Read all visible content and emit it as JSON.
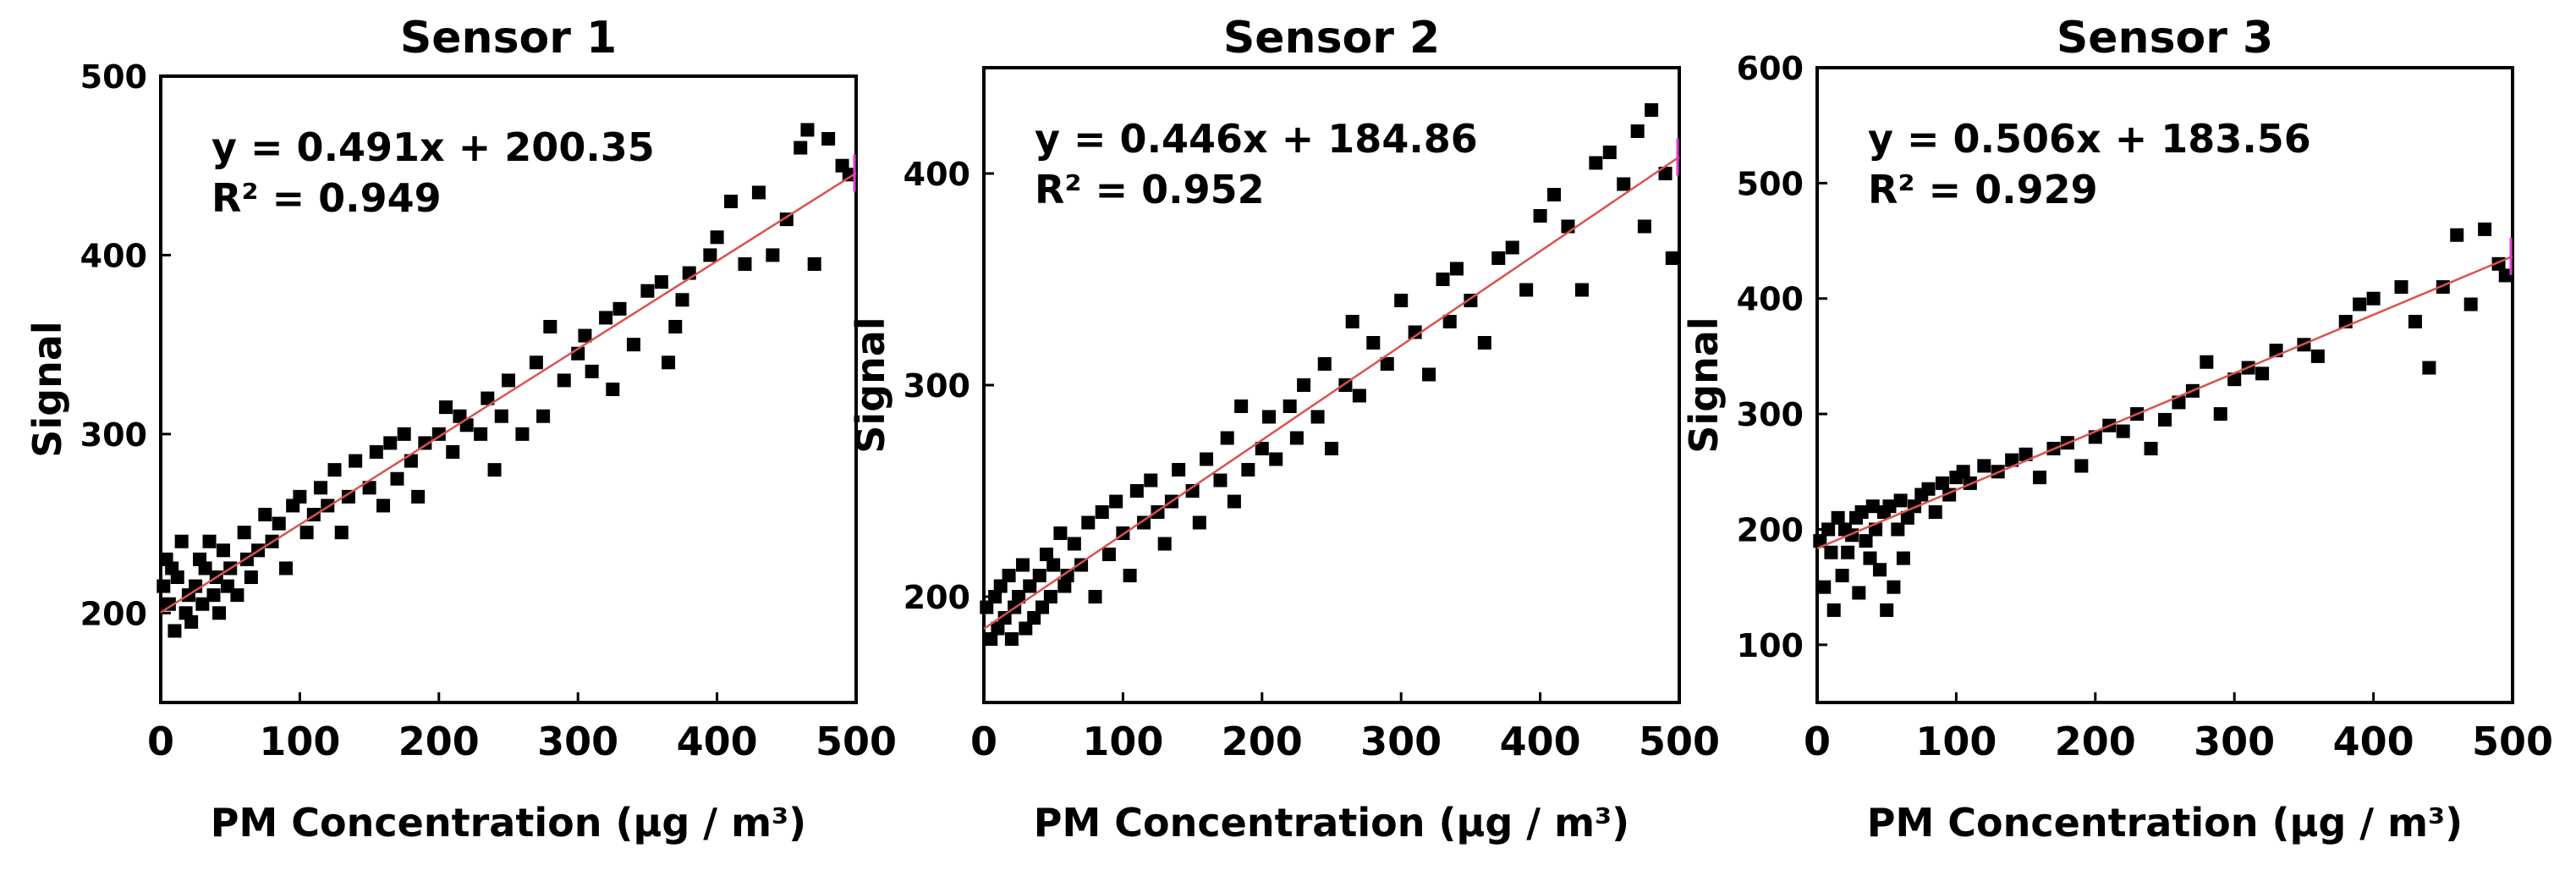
{
  "chart_data": [
    {
      "type": "scatter",
      "title": "Sensor 1",
      "xlabel": "PM Concentration (μg / m³)",
      "ylabel": "Signal",
      "xlim": [
        0,
        500
      ],
      "ylim": [
        150,
        500
      ],
      "xticks": [
        0,
        100,
        200,
        300,
        400,
        500
      ],
      "yticks": [
        200,
        300,
        400,
        500
      ],
      "equation": "y = 0.491x + 200.35",
      "r2_label": "R² = 0.949",
      "fit": {
        "slope": 0.491,
        "intercept": 200.35
      },
      "grid": false,
      "x": [
        2,
        4,
        6,
        8,
        10,
        12,
        15,
        18,
        20,
        22,
        25,
        28,
        30,
        32,
        35,
        38,
        40,
        42,
        45,
        48,
        50,
        55,
        60,
        62,
        65,
        70,
        75,
        80,
        85,
        90,
        95,
        100,
        105,
        110,
        115,
        120,
        125,
        130,
        135,
        140,
        150,
        155,
        160,
        165,
        170,
        175,
        180,
        185,
        190,
        200,
        205,
        210,
        215,
        220,
        230,
        235,
        240,
        245,
        250,
        260,
        270,
        275,
        280,
        290,
        300,
        305,
        310,
        320,
        325,
        330,
        340,
        350,
        360,
        365,
        370,
        375,
        380,
        395,
        400,
        410,
        420,
        430,
        440,
        450,
        460,
        465,
        470,
        480,
        490,
        495
      ],
      "y": [
        215,
        230,
        205,
        225,
        190,
        220,
        240,
        200,
        210,
        195,
        215,
        230,
        205,
        225,
        240,
        210,
        220,
        200,
        235,
        215,
        225,
        210,
        245,
        230,
        220,
        235,
        255,
        240,
        250,
        225,
        260,
        265,
        245,
        255,
        270,
        260,
        280,
        245,
        265,
        285,
        270,
        290,
        260,
        295,
        275,
        300,
        285,
        265,
        295,
        300,
        315,
        290,
        310,
        305,
        300,
        320,
        280,
        310,
        330,
        300,
        340,
        310,
        360,
        330,
        345,
        355,
        335,
        365,
        325,
        370,
        350,
        380,
        385,
        340,
        360,
        375,
        390,
        400,
        410,
        430,
        395,
        435,
        400,
        420,
        460,
        470,
        395,
        465,
        450,
        445
      ]
    },
    {
      "type": "scatter",
      "title": "Sensor 2",
      "xlabel": "PM Concentration (μg / m³)",
      "ylabel": "Signal",
      "xlim": [
        0,
        500
      ],
      "ylim": [
        150,
        450
      ],
      "xticks": [
        0,
        100,
        200,
        300,
        400,
        500
      ],
      "yticks": [
        200,
        300,
        400
      ],
      "equation": "y = 0.446x + 184.86",
      "r2_label": "R² = 0.952",
      "fit": {
        "slope": 0.446,
        "intercept": 184.86
      },
      "grid": false,
      "x": [
        2,
        5,
        8,
        10,
        12,
        15,
        18,
        20,
        22,
        25,
        28,
        30,
        33,
        36,
        40,
        42,
        45,
        48,
        50,
        55,
        58,
        60,
        65,
        70,
        75,
        80,
        85,
        90,
        95,
        100,
        105,
        110,
        115,
        120,
        125,
        130,
        135,
        140,
        150,
        155,
        160,
        170,
        175,
        180,
        185,
        190,
        200,
        205,
        210,
        220,
        225,
        230,
        240,
        245,
        250,
        260,
        265,
        270,
        280,
        290,
        300,
        310,
        320,
        330,
        335,
        340,
        350,
        360,
        370,
        380,
        390,
        400,
        410,
        420,
        430,
        440,
        450,
        460,
        470,
        475,
        480,
        490,
        495
      ],
      "y": [
        195,
        180,
        200,
        185,
        205,
        190,
        210,
        180,
        195,
        200,
        215,
        185,
        205,
        190,
        210,
        195,
        220,
        200,
        215,
        230,
        205,
        210,
        225,
        215,
        235,
        200,
        240,
        220,
        245,
        230,
        210,
        250,
        235,
        255,
        240,
        225,
        245,
        260,
        250,
        235,
        265,
        255,
        275,
        245,
        290,
        260,
        270,
        285,
        265,
        290,
        275,
        300,
        285,
        310,
        270,
        300,
        330,
        295,
        320,
        310,
        340,
        325,
        305,
        350,
        330,
        355,
        340,
        320,
        360,
        365,
        345,
        380,
        390,
        375,
        345,
        405,
        410,
        395,
        420,
        375,
        430,
        400,
        360
      ]
    },
    {
      "type": "scatter",
      "title": "Sensor 3",
      "xlabel": "PM Concentration (μg / m³)",
      "ylabel": "Signal",
      "xlim": [
        0,
        500
      ],
      "ylim": [
        50,
        600
      ],
      "xticks": [
        0,
        100,
        200,
        300,
        400,
        500
      ],
      "yticks": [
        100,
        200,
        300,
        400,
        500,
        600
      ],
      "equation": "y = 0.506x + 183.56",
      "r2_label": "R² = 0.929",
      "fit": {
        "slope": 0.506,
        "intercept": 183.56
      },
      "grid": false,
      "x": [
        2,
        5,
        8,
        10,
        12,
        15,
        18,
        20,
        22,
        25,
        28,
        30,
        32,
        35,
        38,
        40,
        42,
        45,
        48,
        50,
        52,
        55,
        58,
        60,
        62,
        65,
        70,
        75,
        80,
        85,
        90,
        95,
        100,
        105,
        110,
        120,
        130,
        140,
        150,
        160,
        170,
        180,
        190,
        200,
        210,
        220,
        230,
        240,
        250,
        260,
        270,
        280,
        290,
        300,
        310,
        320,
        330,
        350,
        360,
        380,
        390,
        400,
        420,
        430,
        440,
        450,
        460,
        470,
        480,
        490,
        495
      ],
      "y": [
        190,
        150,
        200,
        180,
        130,
        210,
        160,
        200,
        180,
        195,
        210,
        145,
        215,
        190,
        175,
        220,
        200,
        165,
        215,
        130,
        220,
        150,
        200,
        225,
        175,
        210,
        220,
        230,
        235,
        215,
        240,
        230,
        245,
        250,
        240,
        255,
        250,
        260,
        265,
        245,
        270,
        275,
        255,
        280,
        290,
        285,
        300,
        270,
        295,
        310,
        320,
        345,
        300,
        330,
        340,
        335,
        355,
        360,
        350,
        380,
        395,
        400,
        410,
        380,
        340,
        410,
        455,
        395,
        460,
        430,
        420
      ]
    }
  ]
}
